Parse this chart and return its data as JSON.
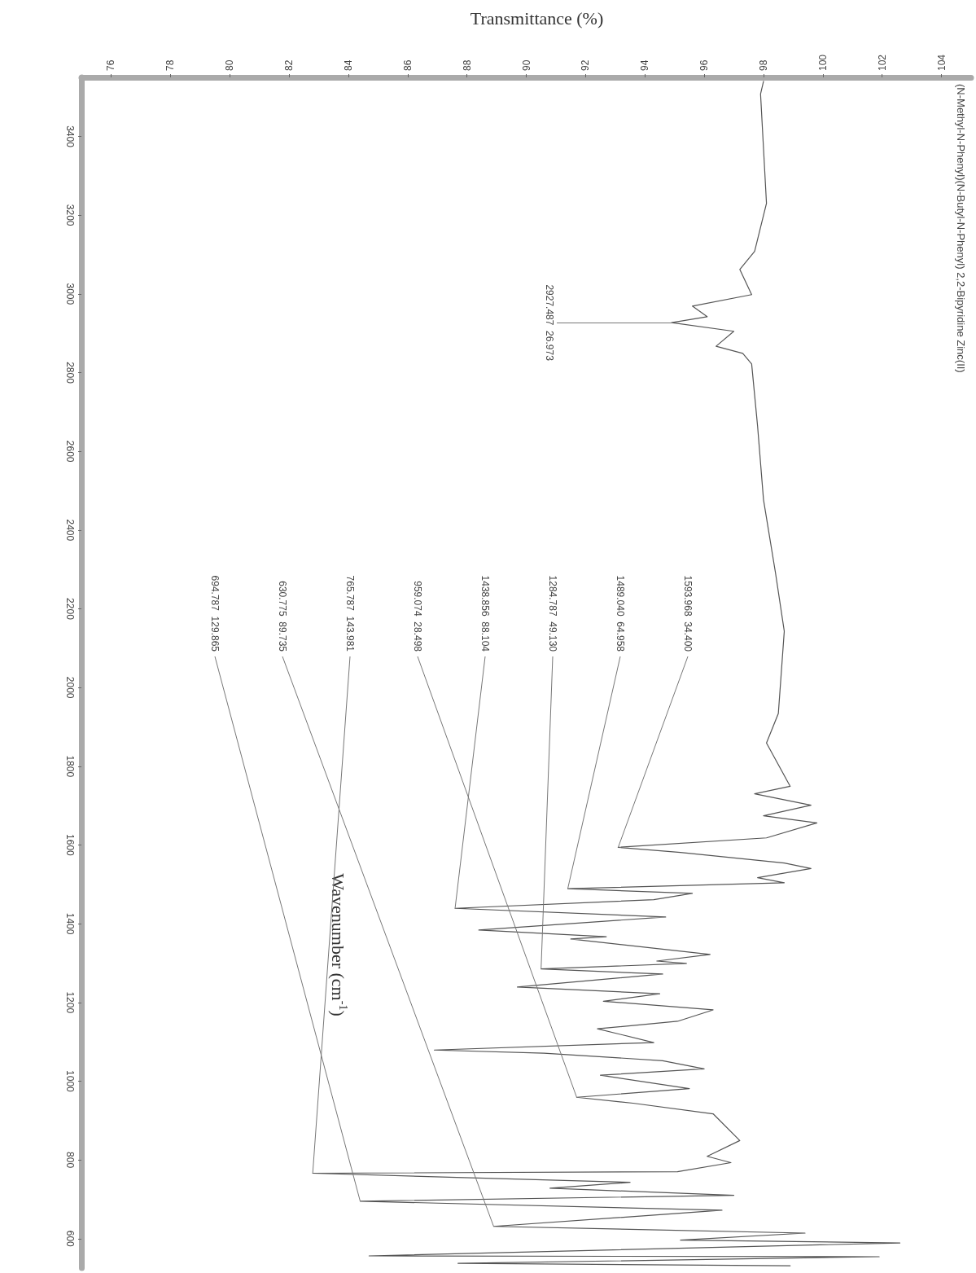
{
  "chart_data": {
    "type": "line",
    "orientation": "horizontal",
    "title": "(N-Methyl-N-Phenyl)(N-Butyl-N-Phenyl) 2,2-Bipyridine Zinc(II)",
    "xlabel": "Transmittance (%)",
    "ylabel": "Wavenumber (cm$^{-1}$)",
    "xlim": [
      75,
      105
    ],
    "xticks": [
      76,
      78,
      80,
      82,
      84,
      86,
      88,
      90,
      92,
      94,
      96,
      98,
      100,
      102,
      104
    ],
    "ylim": [
      525,
      3550
    ],
    "yticks": [
      600,
      800,
      1000,
      1200,
      1400,
      1600,
      1800,
      2000,
      2200,
      2400,
      2600,
      2800,
      3000,
      3200,
      3400
    ],
    "grid": false,
    "marker": "none",
    "line_style": "solid",
    "x": [
      3540,
      3508,
      3230,
      3108,
      3062,
      2998,
      2969,
      2942,
      2927,
      2905,
      2867,
      2849,
      2822,
      2664,
      2477,
      2293,
      2143,
      1934,
      1859,
      1749,
      1730,
      1701,
      1674,
      1656,
      1618,
      1594,
      1581,
      1554,
      1540,
      1517,
      1504,
      1489,
      1477,
      1461,
      1439,
      1417,
      1384,
      1367,
      1361,
      1322,
      1305,
      1299,
      1285,
      1272,
      1239,
      1222,
      1203,
      1181,
      1152,
      1133,
      1098,
      1079,
      1071,
      1052,
      1031,
      1015,
      981,
      959,
      944,
      917,
      849,
      809,
      793,
      770,
      766,
      743,
      728,
      710,
      695,
      672,
      631,
      614,
      596,
      589,
      556,
      554,
      537,
      531
    ],
    "series": [
      {
        "color": "#555555",
        "values": [
          98.0,
          97.9,
          98.1,
          97.7,
          97.2,
          97.6,
          95.6,
          96.1,
          94.9,
          97.0,
          96.4,
          97.3,
          97.6,
          97.8,
          98.0,
          98.4,
          98.7,
          98.5,
          98.1,
          98.9,
          97.7,
          99.6,
          98.0,
          99.8,
          98.1,
          93.1,
          95.2,
          98.7,
          99.6,
          97.8,
          98.7,
          91.4,
          95.6,
          94.3,
          87.6,
          94.7,
          88.4,
          92.7,
          91.5,
          96.2,
          94.4,
          95.4,
          90.5,
          94.6,
          89.7,
          94.5,
          92.6,
          96.3,
          95.1,
          92.4,
          94.3,
          86.9,
          90.6,
          94.6,
          96.0,
          92.5,
          95.5,
          91.7,
          93.6,
          96.3,
          97.2,
          96.1,
          96.9,
          95.1,
          82.8,
          93.5,
          90.8,
          97.0,
          84.4,
          96.6,
          88.9,
          99.4,
          95.2,
          102.6,
          84.7,
          101.9,
          87.7,
          98.9
        ]
      }
    ],
    "annotations": [
      {
        "text": "2927.487  26.973",
        "y": 2927,
        "x": 94.9
      },
      {
        "text": "1593.968  34.400",
        "y": 1594,
        "x": 93.1
      },
      {
        "text": "1489.040  64.958",
        "y": 1489,
        "x": 91.4
      },
      {
        "text": "1284.787  49.130",
        "y": 1285,
        "x": 90.5
      },
      {
        "text": "1438.856  88.104",
        "y": 1439,
        "x": 87.6
      },
      {
        "text": "959.074  28.498",
        "y": 959,
        "x": 91.7
      },
      {
        "text": "765.787  143.981",
        "y": 766,
        "x": 82.8
      },
      {
        "text": "630.775  89.735",
        "y": 631,
        "x": 88.9
      },
      {
        "text": "694.787  129.865",
        "y": 695,
        "x": 84.4
      }
    ]
  }
}
